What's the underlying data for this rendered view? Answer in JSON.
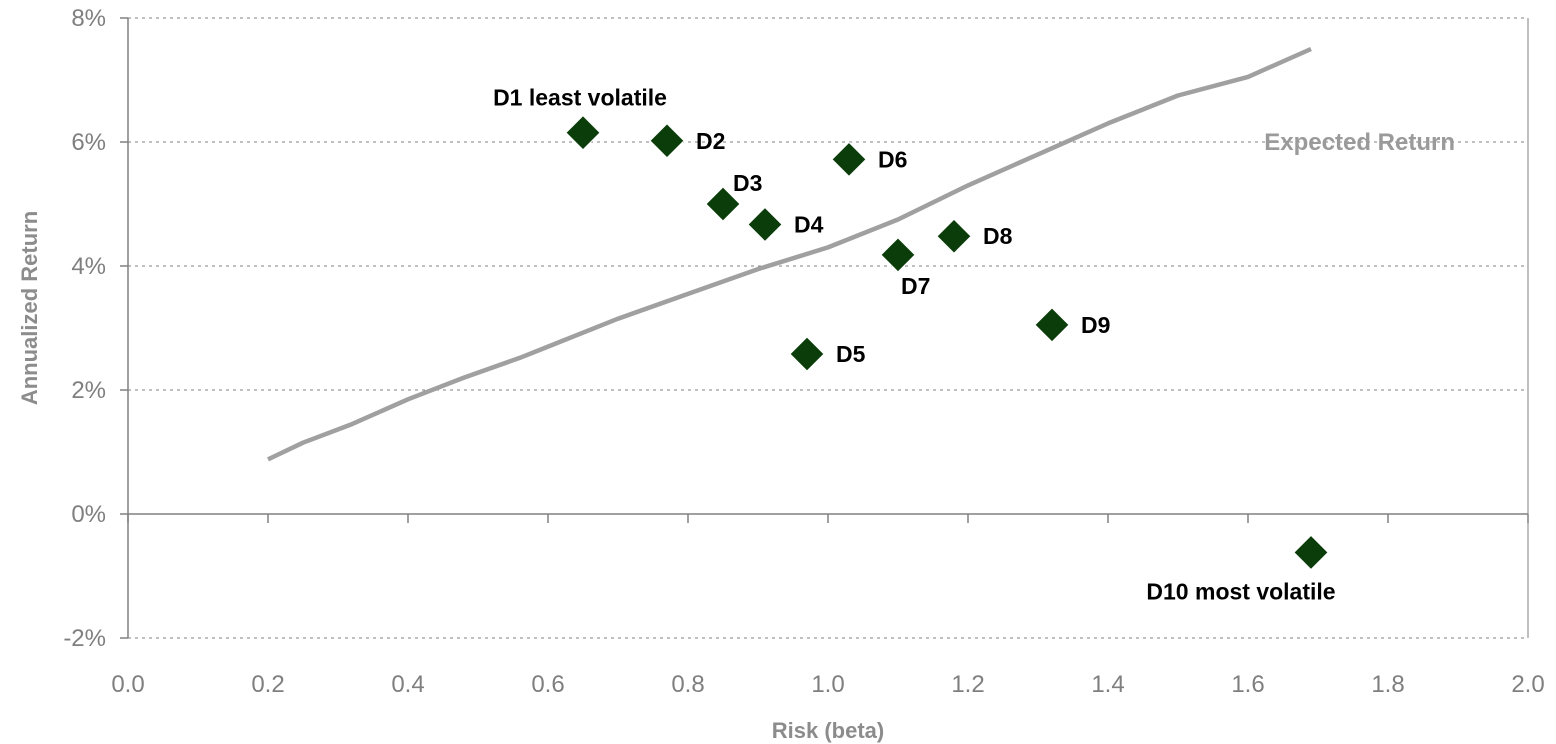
{
  "chart_data": {
    "type": "scatter",
    "xlabel": "Risk (beta)",
    "ylabel": "Annualized Return",
    "xlim": [
      0.0,
      2.0
    ],
    "ylim": [
      -2,
      8
    ],
    "x_ticks": [
      "0.0",
      "0.2",
      "0.4",
      "0.6",
      "0.8",
      "1.0",
      "1.2",
      "1.4",
      "1.6",
      "1.8",
      "2.0"
    ],
    "y_ticks": [
      "-2%",
      "0%",
      "2%",
      "4%",
      "6%",
      "8%"
    ],
    "grid": "horizontal dotted",
    "colors": {
      "points": "#0b3d0b",
      "line": "#a0a0a0",
      "axis": "#808080"
    },
    "series": [
      {
        "type": "scatter",
        "points": [
          {
            "label": "D1 least volatile",
            "x": 0.65,
            "y": 6.15,
            "label_pos": "above"
          },
          {
            "label": "D2",
            "x": 0.77,
            "y": 6.02,
            "label_pos": "right"
          },
          {
            "label": "D3",
            "x": 0.85,
            "y": 5.0,
            "label_pos": "above-right"
          },
          {
            "label": "D4",
            "x": 0.91,
            "y": 4.67,
            "label_pos": "right"
          },
          {
            "label": "D5",
            "x": 0.97,
            "y": 2.58,
            "label_pos": "right"
          },
          {
            "label": "D6",
            "x": 1.03,
            "y": 5.72,
            "label_pos": "right"
          },
          {
            "label": "D7",
            "x": 1.1,
            "y": 4.18,
            "label_pos": "below"
          },
          {
            "label": "D8",
            "x": 1.18,
            "y": 4.48,
            "label_pos": "right"
          },
          {
            "label": "D9",
            "x": 1.32,
            "y": 3.05,
            "label_pos": "right"
          },
          {
            "label": "D10 most volatile",
            "x": 1.69,
            "y": -0.62,
            "label_pos": "below"
          }
        ]
      },
      {
        "name": "Expected Return",
        "type": "line",
        "points": [
          [
            0.2,
            0.88
          ],
          [
            0.25,
            1.15
          ],
          [
            0.32,
            1.45
          ],
          [
            0.4,
            1.85
          ],
          [
            0.48,
            2.2
          ],
          [
            0.56,
            2.52
          ],
          [
            0.6,
            2.7
          ],
          [
            0.7,
            3.15
          ],
          [
            0.8,
            3.55
          ],
          [
            0.9,
            3.95
          ],
          [
            1.0,
            4.3
          ],
          [
            1.1,
            4.75
          ],
          [
            1.2,
            5.3
          ],
          [
            1.3,
            5.8
          ],
          [
            1.4,
            6.3
          ],
          [
            1.5,
            6.75
          ],
          [
            1.6,
            7.05
          ],
          [
            1.69,
            7.5
          ]
        ]
      }
    ]
  }
}
